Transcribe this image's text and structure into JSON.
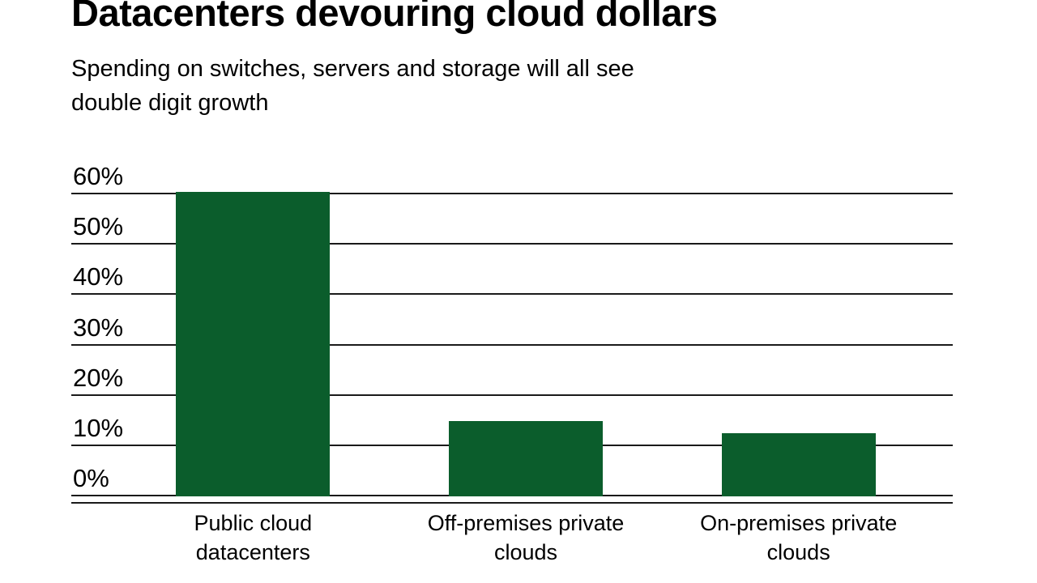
{
  "chart_data": {
    "type": "bar",
    "title": "Datacenters devouring cloud dollars",
    "subtitle": "Spending on switches, servers and storage will all see\ndouble digit growth",
    "categories": [
      "Public cloud\ndatacenters",
      "Off-premises private\nclouds",
      "On-premises private\nclouds"
    ],
    "values": [
      60.5,
      15,
      12.5
    ],
    "ylim": [
      0,
      60
    ],
    "ytick_values": [
      0,
      10,
      20,
      30,
      40,
      50,
      60
    ],
    "ytick_labels": [
      "0%",
      "10%",
      "20%",
      "30%",
      "40%",
      "50%",
      "60%"
    ],
    "xlabel": "",
    "ylabel": "",
    "grid": true,
    "legend": "none",
    "bar_color": "#0b5d2c",
    "gridline_color": "#1a1a1a",
    "text_color": "#000000",
    "background_color": "#ffffff"
  }
}
